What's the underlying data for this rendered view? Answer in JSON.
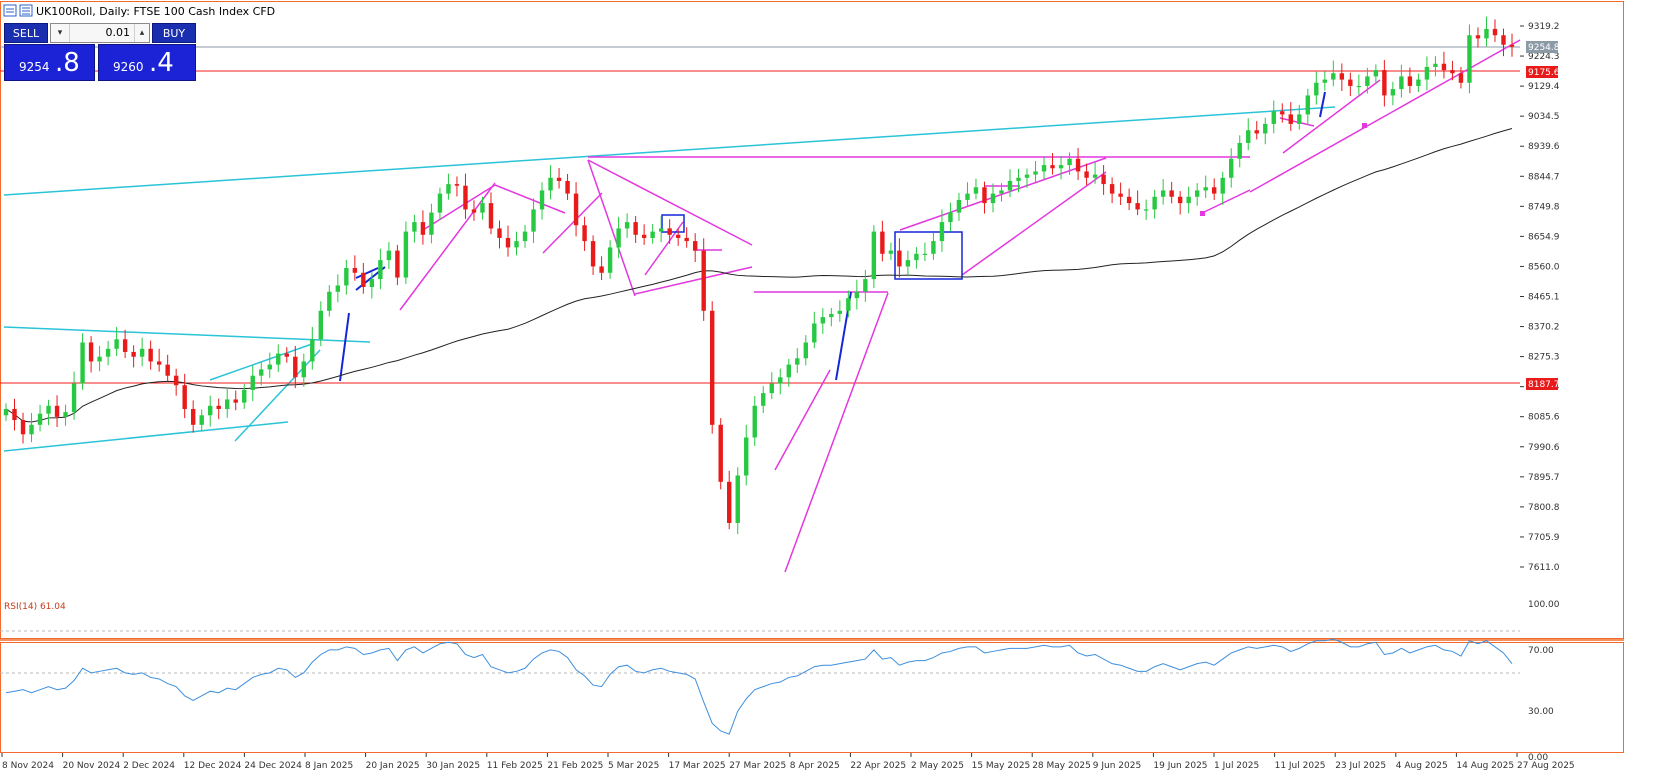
{
  "header": {
    "title": "UK100Roll, Daily:  FTSE 100 Cash Index CFD"
  },
  "trade_panel": {
    "sell_label": "SELL",
    "buy_label": "BUY",
    "lot": "0.01",
    "dec_icon": "▾",
    "inc_icon": "▴",
    "sell_price_prefix": "9254",
    "sell_price_big": ".8",
    "buy_price_prefix": "9260",
    "buy_price_big": ".4"
  },
  "indicator": {
    "label": "RSI(14) 61.04"
  },
  "colors": {
    "bull": "#26c941",
    "bear": "#e81a1a",
    "ma": "#222222",
    "cyan": "#2ac3d8",
    "magenta": "#e437e0",
    "blue": "#1526d8",
    "hline": "#f11b1b",
    "rsi": "#3d8fdc"
  },
  "chart_data": [
    {
      "type": "candlestick",
      "title": "UK100Roll, Daily:  FTSE 100 Cash Index CFD",
      "ylim": [
        7540,
        9400
      ],
      "y_ticks": [
        "9319.2",
        "9224.3",
        "9129.4",
        "9034.5",
        "8939.6",
        "8844.7",
        "8749.8",
        "8654.9",
        "8560.0",
        "8465.1",
        "8370.2",
        "8275.3",
        "8180.4",
        "8085.6",
        "7990.6",
        "7895.7",
        "7800.8",
        "7705.9",
        "7611.0"
      ],
      "x_labels": [
        "8 Nov 2024",
        "20 Nov 2024",
        "2 Dec 2024",
        "12 Dec 2024",
        "24 Dec 2024",
        "8 Jan 2025",
        "20 Jan 2025",
        "30 Jan 2025",
        "11 Feb 2025",
        "21 Feb 2025",
        "5 Mar 2025",
        "17 Mar 2025",
        "27 Mar 2025",
        "8 Apr 2025",
        "22 Apr 2025",
        "2 May 2025",
        "15 May 2025",
        "28 May 2025",
        "9 Jun 2025",
        "19 Jun 2025",
        "1 Jul 2025",
        "11 Jul 2025",
        "23 Jul 2025",
        "4 Aug 2025",
        "14 Aug 2025",
        "27 Aug 2025"
      ],
      "current_price": 9254.8,
      "current_price_label": "9254.8",
      "horizontal_lines": [
        {
          "value": 9175.6,
          "label": "9175.6"
        },
        {
          "value": 8187.7,
          "label": "8187.7"
        }
      ],
      "close": [
        8110,
        8075,
        8030,
        8060,
        8095,
        8120,
        8085,
        8100,
        8190,
        8320,
        8260,
        8275,
        8300,
        8330,
        8290,
        8275,
        8300,
        8260,
        8250,
        8215,
        8185,
        8110,
        8060,
        8090,
        8120,
        8110,
        8140,
        8130,
        8170,
        8215,
        8235,
        8250,
        8285,
        8275,
        8210,
        8260,
        8330,
        8420,
        8480,
        8500,
        8555,
        8540,
        8495,
        8520,
        8580,
        8610,
        8525,
        8670,
        8700,
        8660,
        8730,
        8790,
        8820,
        8815,
        8740,
        8730,
        8760,
        8680,
        8650,
        8620,
        8640,
        8670,
        8740,
        8800,
        8840,
        8830,
        8790,
        8690,
        8640,
        8560,
        8540,
        8620,
        8680,
        8700,
        8660,
        8650,
        8670,
        8680,
        8660,
        8650,
        8640,
        8610,
        8420,
        8060,
        7880,
        7750,
        7900,
        8020,
        8120,
        8160,
        8190,
        8210,
        8250,
        8270,
        8320,
        8380,
        8400,
        8410,
        8420,
        8460,
        8480,
        8520,
        8670,
        8600,
        8610,
        8560,
        8580,
        8600,
        8600,
        8640,
        8700,
        8730,
        8770,
        8790,
        8810,
        8760,
        8790,
        8800,
        8830,
        8840,
        8850,
        8860,
        8880,
        8870,
        8880,
        8900,
        8860,
        8840,
        8850,
        8820,
        8790,
        8780,
        8760,
        8740,
        8740,
        8780,
        8800,
        8780,
        8760,
        8780,
        8800,
        8810,
        8790,
        8840,
        8900,
        8950,
        8990,
        8980,
        9010,
        9050,
        9040,
        9010,
        9040,
        9100,
        9140,
        9150,
        9170,
        9150,
        9130,
        9130,
        9160,
        9180,
        9100,
        9120,
        9160,
        9130,
        9150,
        9190,
        9200,
        9180,
        9170,
        9140,
        9290,
        9280,
        9310,
        9290,
        9260,
        9254
      ]
    },
    {
      "type": "line",
      "title": "RSI(14) 61.04",
      "ylim": [
        0,
        100
      ],
      "y_ticks": [
        "100.00",
        "70.00",
        "30.00",
        "0.00"
      ],
      "levels": [
        70,
        30
      ],
      "values": [
        42,
        43,
        44,
        42,
        44,
        46,
        44,
        45,
        50,
        58,
        55,
        56,
        57,
        58,
        55,
        54,
        55,
        52,
        51,
        48,
        46,
        40,
        37,
        40,
        43,
        42,
        45,
        44,
        48,
        52,
        54,
        55,
        58,
        57,
        52,
        55,
        62,
        67,
        70,
        70,
        72,
        71,
        67,
        68,
        70,
        71,
        63,
        70,
        72,
        68,
        71,
        74,
        75,
        74,
        67,
        65,
        67,
        59,
        57,
        55,
        56,
        58,
        64,
        68,
        70,
        69,
        65,
        57,
        53,
        47,
        46,
        54,
        59,
        60,
        56,
        55,
        57,
        58,
        56,
        55,
        54,
        51,
        36,
        22,
        17,
        15,
        30,
        38,
        44,
        46,
        48,
        49,
        52,
        53,
        56,
        59,
        60,
        60,
        61,
        62,
        63,
        64,
        70,
        64,
        65,
        60,
        62,
        63,
        63,
        65,
        68,
        69,
        71,
        72,
        72,
        68,
        69,
        70,
        71,
        71,
        71,
        72,
        73,
        72,
        72,
        73,
        68,
        66,
        67,
        64,
        61,
        60,
        58,
        56,
        56,
        59,
        61,
        59,
        57,
        59,
        61,
        62,
        60,
        64,
        68,
        70,
        72,
        71,
        72,
        73,
        72,
        69,
        71,
        74,
        76,
        76,
        77,
        75,
        72,
        72,
        74,
        75,
        67,
        68,
        71,
        68,
        70,
        72,
        73,
        70,
        69,
        66,
        76,
        74,
        76,
        72,
        68,
        61
      ]
    }
  ]
}
